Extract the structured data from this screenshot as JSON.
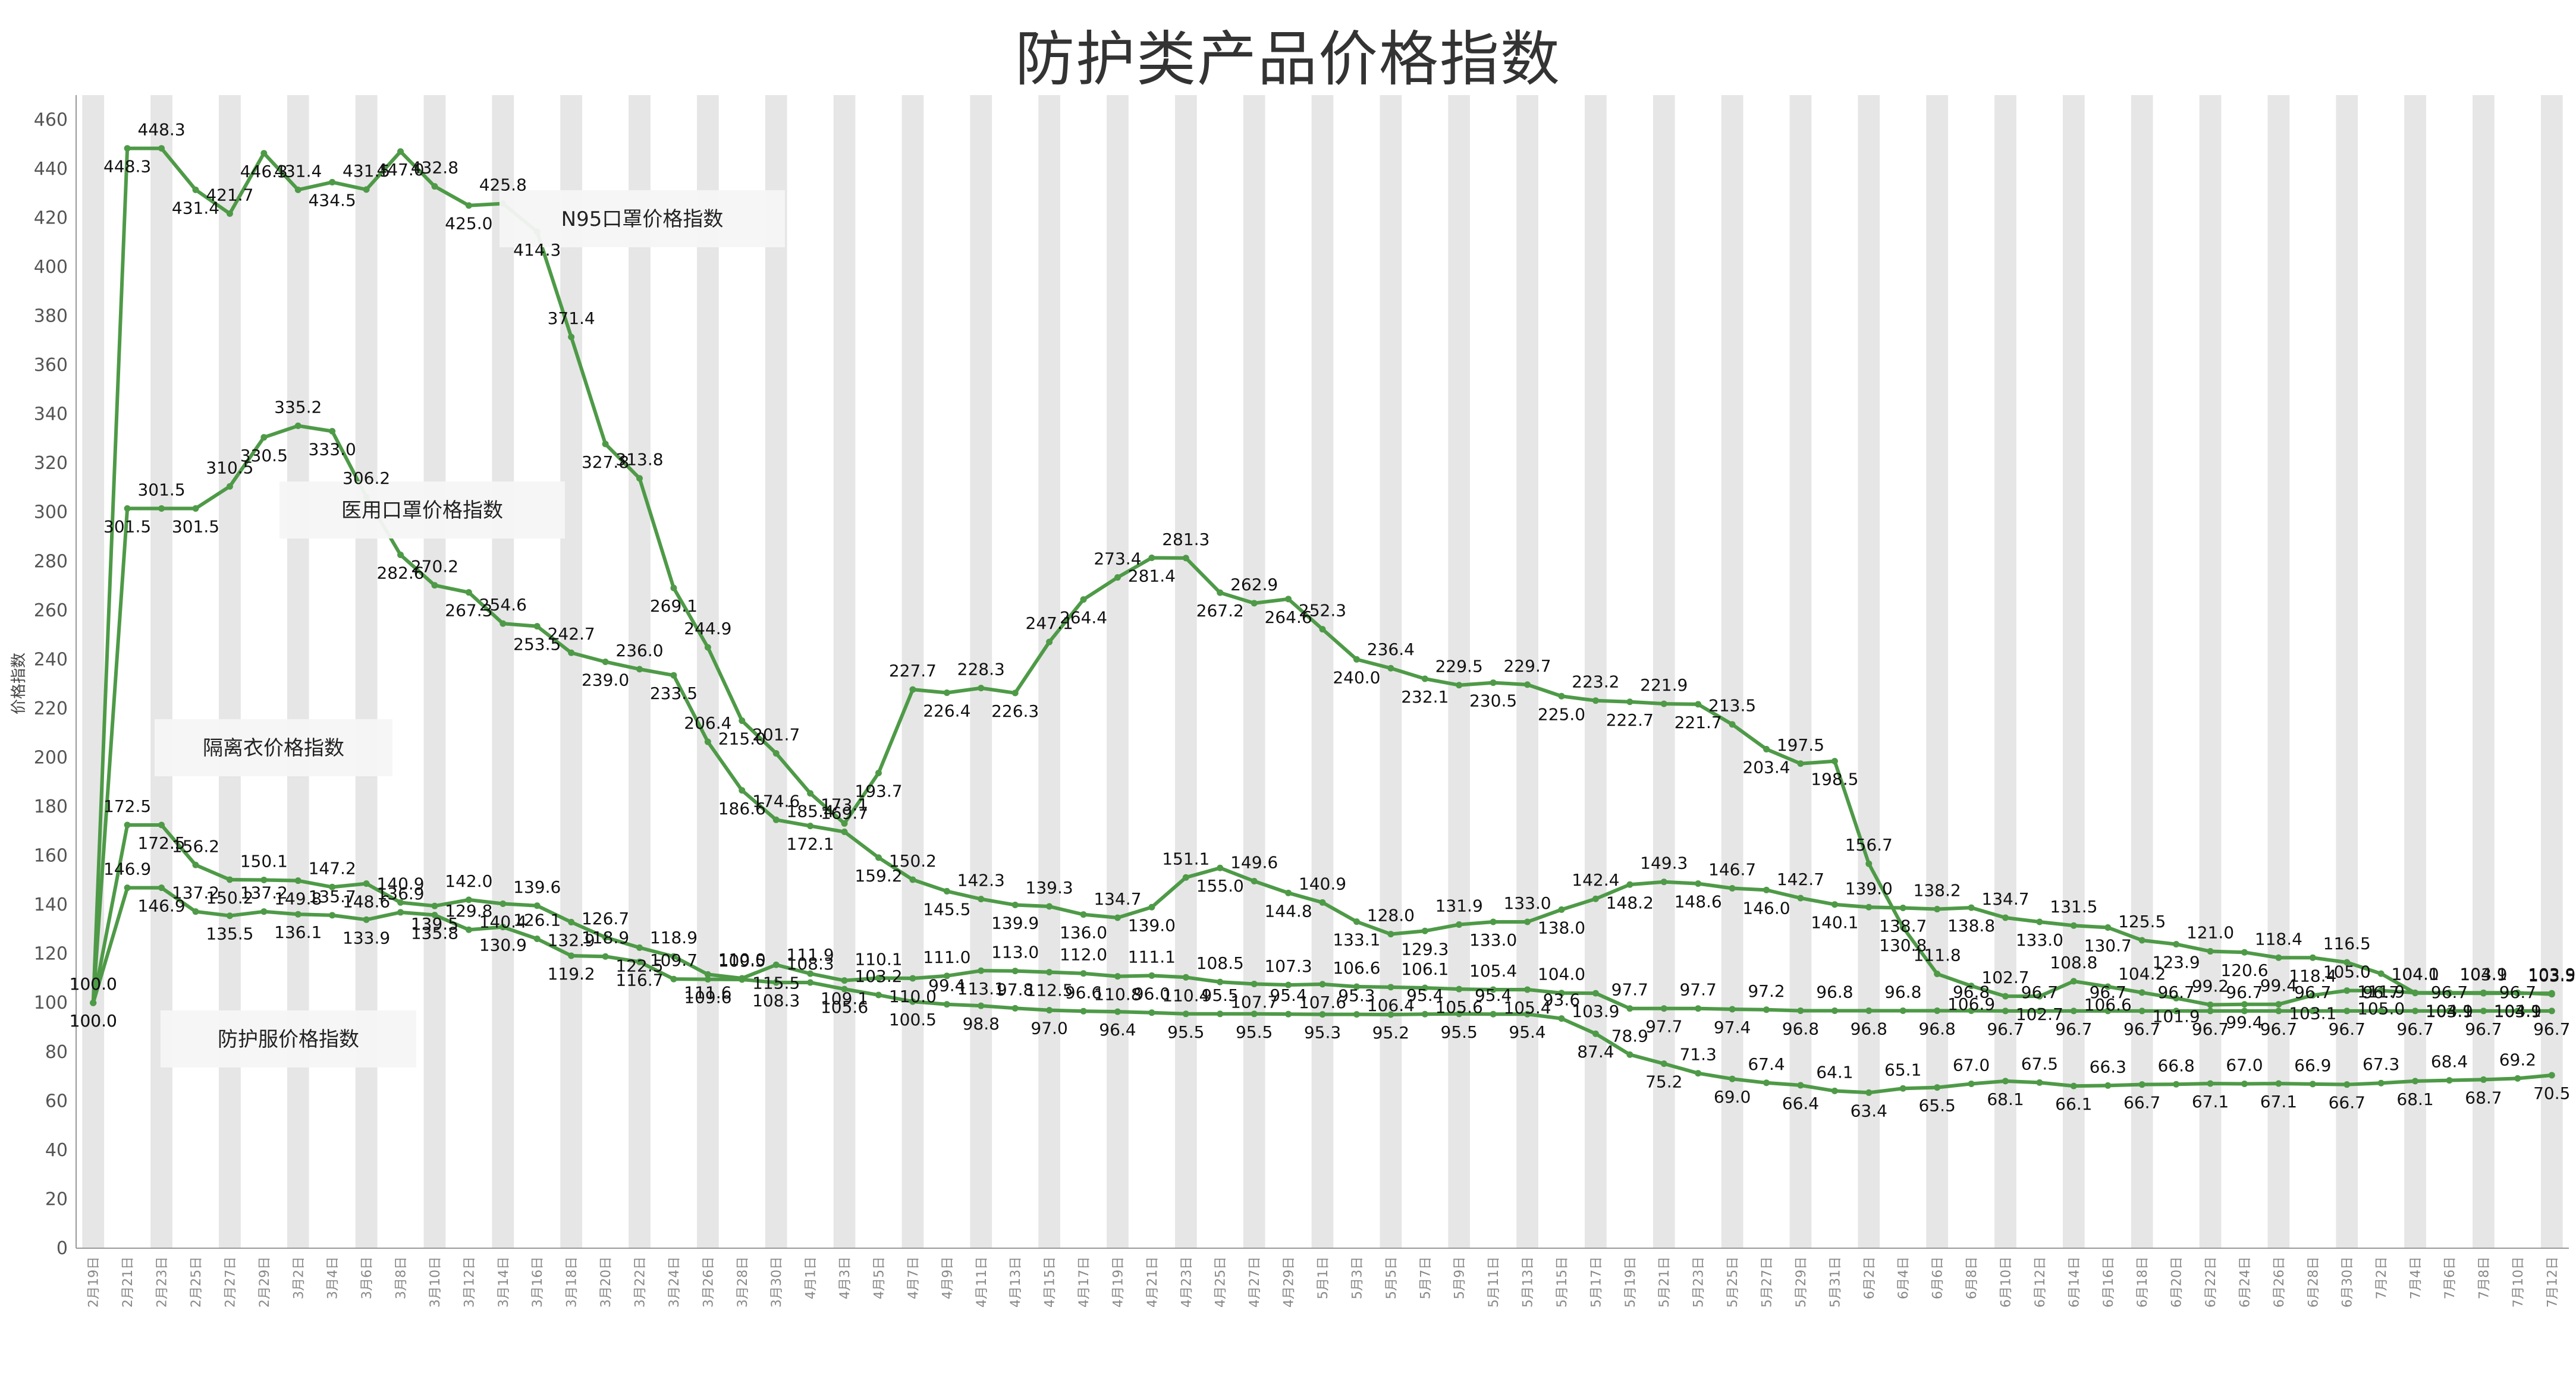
{
  "chart_data": {
    "type": "line",
    "title": "防护类产品价格指数",
    "ylabel": "价格指数",
    "xlabel": "",
    "ylim": [
      0,
      470
    ],
    "yticks": [
      0,
      20,
      40,
      60,
      80,
      100,
      120,
      140,
      160,
      180,
      200,
      220,
      240,
      260,
      280,
      300,
      320,
      340,
      360,
      380,
      400,
      420,
      440,
      460
    ],
    "grid": "alternating vertical bands",
    "legend": "inline text boxes beside lines",
    "line_color": "#4e9a47",
    "categories": [
      "2月19日",
      "2月21日",
      "2月23日",
      "2月25日",
      "2月27日",
      "2月29日",
      "3月2日",
      "3月4日",
      "3月6日",
      "3月8日",
      "3月10日",
      "3月12日",
      "3月14日",
      "3月16日",
      "3月18日",
      "3月20日",
      "3月22日",
      "3月24日",
      "3月26日",
      "3月28日",
      "3月30日",
      "4月1日",
      "4月3日",
      "4月5日",
      "4月7日",
      "4月9日",
      "4月11日",
      "4月13日",
      "4月15日",
      "4月17日",
      "4月19日",
      "4月21日",
      "4月23日",
      "4月25日",
      "4月27日",
      "4月29日",
      "5月1日",
      "5月3日",
      "5月5日",
      "5月7日",
      "5月9日",
      "5月11日",
      "5月13日",
      "5月15日",
      "5月17日",
      "5月19日",
      "5月21日",
      "5月23日",
      "5月25日",
      "5月27日",
      "5月29日",
      "5月31日",
      "6月2日",
      "6月4日",
      "6月6日",
      "6月8日",
      "6月10日",
      "6月12日",
      "6月14日",
      "6月16日",
      "6月18日",
      "6月20日",
      "6月22日",
      "6月24日",
      "6月26日",
      "6月28日",
      "6月30日",
      "7月2日",
      "7月4日",
      "7月6日",
      "7月8日",
      "7月10日",
      "7月12日"
    ],
    "series": [
      {
        "name": "N95口罩价格指数",
        "values": [
          100.0,
          448.3,
          448.3,
          431.4,
          421.7,
          446.3,
          431.4,
          434.5,
          431.5,
          447.0,
          432.8,
          425.0,
          425.8,
          414.3,
          371.4,
          327.8,
          313.8,
          269.1,
          244.9,
          215.0,
          201.7,
          185.4,
          173.1,
          193.7,
          227.7,
          226.4,
          228.3,
          226.3,
          247.1,
          264.4,
          273.4,
          281.4,
          281.3,
          267.2,
          262.9,
          264.6,
          252.3,
          240.0,
          236.4,
          232.1,
          229.5,
          230.5,
          229.7,
          225.0,
          223.2,
          222.7,
          221.9,
          221.7,
          213.5,
          203.4,
          197.5,
          198.5,
          156.7,
          130.8,
          111.8,
          106.9,
          102.7,
          102.7,
          108.8,
          106.6,
          104.2,
          101.9,
          99.2,
          99.4,
          99.4,
          103.1,
          105.0,
          105.0,
          104.1,
          104.1,
          104.1,
          104.1,
          103.5
        ]
      },
      {
        "name": "医用口罩价格指数",
        "values": [
          100.0,
          301.5,
          301.5,
          301.5,
          310.5,
          330.5,
          335.2,
          333.0,
          306.2,
          282.6,
          270.2,
          267.3,
          254.6,
          253.5,
          242.7,
          239.0,
          236.0,
          233.5,
          206.4,
          186.6,
          174.6,
          172.1,
          169.7,
          159.2,
          150.2,
          145.5,
          142.3,
          139.9,
          139.3,
          136.0,
          134.7,
          139.0,
          151.1,
          155.0,
          149.6,
          144.8,
          140.9,
          133.1,
          128.0,
          129.3,
          131.9,
          133.0,
          133.0,
          138.0,
          142.4,
          148.2,
          149.3,
          148.6,
          146.7,
          146.0,
          142.7,
          140.1,
          139.0,
          138.7,
          138.2,
          138.8,
          134.7,
          133.0,
          131.5,
          130.7,
          125.5,
          123.9,
          121.0,
          120.6,
          118.4,
          118.4,
          116.5,
          111.9,
          104.0,
          103.9,
          103.9,
          103.9,
          103.9
        ]
      },
      {
        "name": "隔离衣价格指数",
        "values": [
          100.0,
          172.5,
          172.5,
          156.2,
          150.2,
          150.1,
          149.8,
          147.2,
          148.6,
          140.9,
          139.5,
          142.0,
          140.4,
          139.6,
          132.9,
          126.7,
          122.5,
          118.9,
          111.6,
          110.0,
          115.5,
          111.9,
          109.1,
          110.1,
          110.0,
          111.0,
          113.1,
          113.0,
          112.5,
          112.0,
          110.8,
          111.1,
          110.4,
          108.5,
          107.7,
          107.3,
          107.6,
          106.6,
          106.4,
          106.1,
          105.6,
          105.4,
          105.4,
          104.0,
          103.9,
          97.7,
          97.7,
          97.7,
          97.4,
          97.2,
          96.8,
          96.8,
          96.8,
          96.8,
          96.8,
          96.8,
          96.7,
          96.7,
          96.7,
          96.7,
          96.7,
          96.7,
          96.7,
          96.7,
          96.7,
          96.7,
          96.7,
          96.7,
          96.7,
          96.7,
          96.7,
          96.7,
          96.7
        ]
      },
      {
        "name": "防护服价格指数",
        "values": [
          100.0,
          146.9,
          146.9,
          137.2,
          135.5,
          137.2,
          136.1,
          135.7,
          133.9,
          136.9,
          135.8,
          129.8,
          130.9,
          126.1,
          119.2,
          118.9,
          116.7,
          109.7,
          109.6,
          109.5,
          108.3,
          108.3,
          105.6,
          103.2,
          100.5,
          99.4,
          98.8,
          97.8,
          97.0,
          96.6,
          96.4,
          96.0,
          95.5,
          95.5,
          95.5,
          95.4,
          95.3,
          95.3,
          95.2,
          95.4,
          95.5,
          95.4,
          95.4,
          93.6,
          87.4,
          78.9,
          75.2,
          71.3,
          69.0,
          67.4,
          66.4,
          64.1,
          63.4,
          65.1,
          65.5,
          67.0,
          68.1,
          67.5,
          66.1,
          66.3,
          66.7,
          66.8,
          67.1,
          67.0,
          67.1,
          66.9,
          66.7,
          67.3,
          68.1,
          68.4,
          68.7,
          69.2,
          70.5
        ]
      }
    ]
  }
}
